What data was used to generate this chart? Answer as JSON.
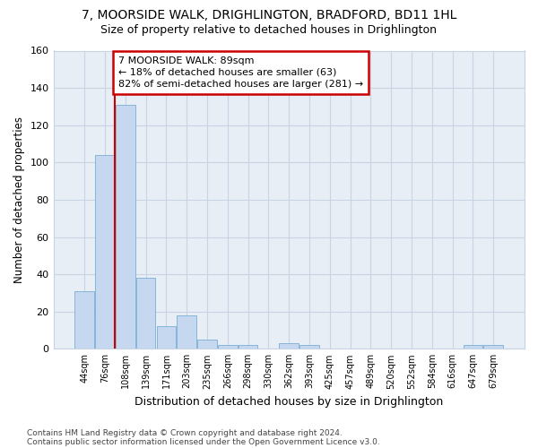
{
  "title1": "7, MOORSIDE WALK, DRIGHLINGTON, BRADFORD, BD11 1HL",
  "title2": "Size of property relative to detached houses in Drighlington",
  "xlabel": "Distribution of detached houses by size in Drighlington",
  "ylabel": "Number of detached properties",
  "footer_line1": "Contains HM Land Registry data © Crown copyright and database right 2024.",
  "footer_line2": "Contains public sector information licensed under the Open Government Licence v3.0.",
  "bin_labels": [
    "44sqm",
    "76sqm",
    "108sqm",
    "139sqm",
    "171sqm",
    "203sqm",
    "235sqm",
    "266sqm",
    "298sqm",
    "330sqm",
    "362sqm",
    "393sqm",
    "425sqm",
    "457sqm",
    "489sqm",
    "520sqm",
    "552sqm",
    "584sqm",
    "616sqm",
    "647sqm",
    "679sqm"
  ],
  "bar_values": [
    31,
    104,
    131,
    38,
    12,
    18,
    5,
    2,
    2,
    0,
    3,
    2,
    0,
    0,
    0,
    0,
    0,
    0,
    0,
    2,
    2
  ],
  "bar_color": "#c5d8ef",
  "bar_edge_color": "#7aadd4",
  "grid_color": "#c8d4e3",
  "background_color": "#e8eef6",
  "property_line_x": 1.5,
  "annotation_line1": "7 MOORSIDE WALK: 89sqm",
  "annotation_line2": "← 18% of detached houses are smaller (63)",
  "annotation_line3": "82% of semi-detached houses are larger (281) →",
  "annotation_box_color": "#ffffff",
  "annotation_border_color": "#cc0000",
  "red_line_color": "#cc0000",
  "ylim": [
    0,
    160
  ],
  "yticks": [
    0,
    20,
    40,
    60,
    80,
    100,
    120,
    140,
    160
  ]
}
